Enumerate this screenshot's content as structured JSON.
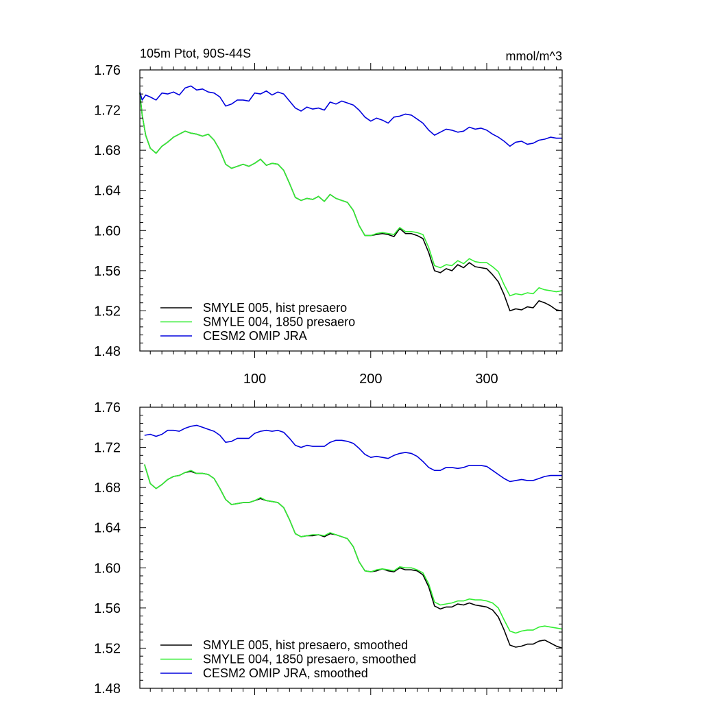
{
  "chart_data": [
    {
      "type": "line",
      "title": "105m Ptot, 90S-44S",
      "units": "mmol/m^3",
      "xlabel": "",
      "ylabel": "",
      "xlim": [
        1,
        365
      ],
      "ylim": [
        1.48,
        1.76
      ],
      "xticks": [
        100,
        200,
        300
      ],
      "xtick_labels": [
        "100",
        "200",
        "300"
      ],
      "yticks": [
        1.48,
        1.52,
        1.56,
        1.6,
        1.64,
        1.68,
        1.72,
        1.76
      ],
      "ytick_labels": [
        "1.48",
        "1.52",
        "1.56",
        "1.60",
        "1.64",
        "1.68",
        "1.72",
        "1.76"
      ],
      "grid": false,
      "legend_position": "bottom-left",
      "series": [
        {
          "name": "SMYLE 005, hist presaero",
          "color": "#000000",
          "x": [
            1,
            3,
            6,
            10,
            15,
            20,
            25,
            30,
            35,
            40,
            45,
            50,
            55,
            60,
            65,
            70,
            75,
            80,
            85,
            90,
            95,
            100,
            105,
            110,
            115,
            120,
            125,
            130,
            135,
            140,
            145,
            150,
            155,
            160,
            165,
            170,
            175,
            180,
            185,
            190,
            195,
            200,
            205,
            210,
            215,
            220,
            225,
            230,
            235,
            240,
            245,
            250,
            255,
            260,
            265,
            270,
            275,
            280,
            285,
            290,
            295,
            300,
            305,
            310,
            315,
            320,
            325,
            330,
            335,
            340,
            345,
            350,
            355,
            360,
            365
          ],
          "values": [
            1.737,
            1.715,
            1.695,
            1.682,
            1.677,
            1.684,
            1.688,
            1.693,
            1.696,
            1.699,
            1.697,
            1.696,
            1.694,
            1.696,
            1.69,
            1.68,
            1.666,
            1.662,
            1.664,
            1.666,
            1.664,
            1.667,
            1.671,
            1.665,
            1.667,
            1.666,
            1.66,
            1.647,
            1.633,
            1.63,
            1.632,
            1.631,
            1.634,
            1.629,
            1.636,
            1.632,
            1.63,
            1.628,
            1.62,
            1.605,
            1.595,
            1.595,
            1.596,
            1.597,
            1.596,
            1.594,
            1.602,
            1.597,
            1.597,
            1.595,
            1.592,
            1.578,
            1.56,
            1.558,
            1.562,
            1.56,
            1.566,
            1.563,
            1.568,
            1.564,
            1.563,
            1.562,
            1.556,
            1.549,
            1.536,
            1.52,
            1.522,
            1.521,
            1.524,
            1.523,
            1.53,
            1.528,
            1.525,
            1.521,
            1.52
          ]
        },
        {
          "name": "SMYLE 004, 1850 presaero",
          "color": "#33ee33",
          "x": [
            1,
            3,
            6,
            10,
            15,
            20,
            25,
            30,
            35,
            40,
            45,
            50,
            55,
            60,
            65,
            70,
            75,
            80,
            85,
            90,
            95,
            100,
            105,
            110,
            115,
            120,
            125,
            130,
            135,
            140,
            145,
            150,
            155,
            160,
            165,
            170,
            175,
            180,
            185,
            190,
            195,
            200,
            205,
            210,
            215,
            220,
            225,
            230,
            235,
            240,
            245,
            250,
            255,
            260,
            265,
            270,
            275,
            280,
            285,
            290,
            295,
            300,
            305,
            310,
            315,
            320,
            325,
            330,
            335,
            340,
            345,
            350,
            355,
            360,
            365
          ],
          "values": [
            1.737,
            1.715,
            1.695,
            1.682,
            1.677,
            1.684,
            1.688,
            1.693,
            1.696,
            1.699,
            1.697,
            1.696,
            1.694,
            1.696,
            1.69,
            1.68,
            1.666,
            1.662,
            1.664,
            1.666,
            1.664,
            1.667,
            1.671,
            1.665,
            1.667,
            1.666,
            1.66,
            1.647,
            1.633,
            1.63,
            1.632,
            1.631,
            1.634,
            1.629,
            1.636,
            1.632,
            1.63,
            1.628,
            1.62,
            1.605,
            1.595,
            1.595,
            1.597,
            1.598,
            1.597,
            1.596,
            1.603,
            1.599,
            1.599,
            1.598,
            1.596,
            1.583,
            1.565,
            1.563,
            1.566,
            1.565,
            1.57,
            1.567,
            1.572,
            1.569,
            1.568,
            1.568,
            1.564,
            1.559,
            1.546,
            1.535,
            1.537,
            1.536,
            1.538,
            1.537,
            1.543,
            1.541,
            1.54,
            1.539,
            1.54
          ]
        },
        {
          "name": "CESM2 OMIP JRA",
          "color": "#0000dd",
          "x": [
            1,
            3,
            6,
            10,
            15,
            20,
            25,
            30,
            35,
            40,
            45,
            50,
            55,
            60,
            65,
            70,
            75,
            80,
            85,
            90,
            95,
            100,
            105,
            110,
            115,
            120,
            125,
            130,
            135,
            140,
            145,
            150,
            155,
            160,
            165,
            170,
            175,
            180,
            185,
            190,
            195,
            200,
            205,
            210,
            215,
            220,
            225,
            230,
            235,
            240,
            245,
            250,
            255,
            260,
            265,
            270,
            275,
            280,
            285,
            290,
            295,
            300,
            305,
            310,
            315,
            320,
            325,
            330,
            335,
            340,
            345,
            350,
            355,
            360,
            365
          ],
          "values": [
            1.738,
            1.73,
            1.735,
            1.733,
            1.73,
            1.737,
            1.736,
            1.738,
            1.735,
            1.742,
            1.744,
            1.74,
            1.741,
            1.738,
            1.737,
            1.733,
            1.724,
            1.726,
            1.73,
            1.73,
            1.729,
            1.737,
            1.736,
            1.739,
            1.735,
            1.738,
            1.736,
            1.729,
            1.722,
            1.719,
            1.723,
            1.721,
            1.722,
            1.72,
            1.728,
            1.726,
            1.729,
            1.727,
            1.725,
            1.72,
            1.713,
            1.709,
            1.712,
            1.71,
            1.707,
            1.713,
            1.714,
            1.716,
            1.715,
            1.711,
            1.707,
            1.7,
            1.695,
            1.698,
            1.701,
            1.7,
            1.698,
            1.699,
            1.703,
            1.701,
            1.702,
            1.7,
            1.696,
            1.693,
            1.689,
            1.684,
            1.688,
            1.689,
            1.686,
            1.687,
            1.69,
            1.691,
            1.693,
            1.692,
            1.692
          ]
        }
      ]
    },
    {
      "type": "line",
      "title": "",
      "xlabel": "",
      "ylabel": "",
      "xlim": [
        1,
        365
      ],
      "ylim": [
        1.48,
        1.76
      ],
      "xticks": [
        100,
        200,
        300
      ],
      "yticks": [
        1.48,
        1.52,
        1.56,
        1.6,
        1.64,
        1.68,
        1.72,
        1.76
      ],
      "ytick_labels": [
        "1.48",
        "1.52",
        "1.56",
        "1.60",
        "1.64",
        "1.68",
        "1.72",
        "1.76"
      ],
      "grid": false,
      "legend_position": "bottom-left",
      "series": [
        {
          "name": "SMYLE 005, hist presaero, smoothed",
          "color": "#000000",
          "x": [
            5,
            10,
            15,
            20,
            25,
            30,
            35,
            40,
            45,
            50,
            55,
            60,
            65,
            70,
            75,
            80,
            85,
            90,
            95,
            100,
            105,
            110,
            115,
            120,
            125,
            130,
            135,
            140,
            145,
            150,
            155,
            160,
            165,
            170,
            175,
            180,
            185,
            190,
            195,
            200,
            205,
            210,
            215,
            220,
            225,
            230,
            235,
            240,
            245,
            250,
            255,
            260,
            265,
            270,
            275,
            280,
            285,
            290,
            295,
            300,
            305,
            310,
            315,
            320,
            325,
            330,
            335,
            340,
            345,
            350,
            355,
            360,
            365
          ],
          "values": [
            1.703,
            1.684,
            1.679,
            1.683,
            1.688,
            1.691,
            1.692,
            1.695,
            1.696,
            1.694,
            1.694,
            1.693,
            1.689,
            1.679,
            1.668,
            1.663,
            1.664,
            1.665,
            1.665,
            1.667,
            1.669,
            1.667,
            1.666,
            1.665,
            1.66,
            1.648,
            1.634,
            1.631,
            1.632,
            1.632,
            1.633,
            1.631,
            1.634,
            1.633,
            1.631,
            1.629,
            1.621,
            1.606,
            1.597,
            1.596,
            1.597,
            1.599,
            1.597,
            1.596,
            1.6,
            1.598,
            1.598,
            1.597,
            1.593,
            1.581,
            1.562,
            1.559,
            1.561,
            1.561,
            1.564,
            1.563,
            1.565,
            1.563,
            1.562,
            1.561,
            1.558,
            1.551,
            1.538,
            1.523,
            1.521,
            1.522,
            1.524,
            1.524,
            1.527,
            1.528,
            1.525,
            1.522,
            1.52
          ]
        },
        {
          "name": "SMYLE 004, 1850 presaero, smoothed",
          "color": "#33ee33",
          "x": [
            5,
            10,
            15,
            20,
            25,
            30,
            35,
            40,
            45,
            50,
            55,
            60,
            65,
            70,
            75,
            80,
            85,
            90,
            95,
            100,
            105,
            110,
            115,
            120,
            125,
            130,
            135,
            140,
            145,
            150,
            155,
            160,
            165,
            170,
            175,
            180,
            185,
            190,
            195,
            200,
            205,
            210,
            215,
            220,
            225,
            230,
            235,
            240,
            245,
            250,
            255,
            260,
            265,
            270,
            275,
            280,
            285,
            290,
            295,
            300,
            305,
            310,
            315,
            320,
            325,
            330,
            335,
            340,
            345,
            350,
            355,
            360,
            365
          ],
          "values": [
            1.703,
            1.684,
            1.679,
            1.683,
            1.688,
            1.691,
            1.692,
            1.695,
            1.697,
            1.694,
            1.694,
            1.693,
            1.689,
            1.679,
            1.668,
            1.663,
            1.664,
            1.665,
            1.665,
            1.667,
            1.67,
            1.667,
            1.666,
            1.665,
            1.66,
            1.648,
            1.634,
            1.631,
            1.632,
            1.633,
            1.633,
            1.632,
            1.635,
            1.633,
            1.631,
            1.629,
            1.621,
            1.606,
            1.597,
            1.596,
            1.598,
            1.599,
            1.598,
            1.597,
            1.601,
            1.6,
            1.6,
            1.598,
            1.595,
            1.584,
            1.566,
            1.563,
            1.564,
            1.565,
            1.567,
            1.567,
            1.569,
            1.568,
            1.568,
            1.567,
            1.565,
            1.56,
            1.548,
            1.537,
            1.535,
            1.537,
            1.538,
            1.538,
            1.541,
            1.542,
            1.541,
            1.54,
            1.539
          ]
        },
        {
          "name": "CESM2 OMIP JRA, smoothed",
          "color": "#0000dd",
          "x": [
            5,
            10,
            15,
            20,
            25,
            30,
            35,
            40,
            45,
            50,
            55,
            60,
            65,
            70,
            75,
            80,
            85,
            90,
            95,
            100,
            105,
            110,
            115,
            120,
            125,
            130,
            135,
            140,
            145,
            150,
            155,
            160,
            165,
            170,
            175,
            180,
            185,
            190,
            195,
            200,
            205,
            210,
            215,
            220,
            225,
            230,
            235,
            240,
            245,
            250,
            255,
            260,
            265,
            270,
            275,
            280,
            285,
            290,
            295,
            300,
            305,
            310,
            315,
            320,
            325,
            330,
            335,
            340,
            345,
            350,
            355,
            360,
            365
          ],
          "values": [
            1.732,
            1.733,
            1.731,
            1.733,
            1.737,
            1.737,
            1.736,
            1.739,
            1.741,
            1.742,
            1.74,
            1.738,
            1.736,
            1.732,
            1.725,
            1.726,
            1.729,
            1.729,
            1.729,
            1.734,
            1.736,
            1.737,
            1.736,
            1.737,
            1.735,
            1.729,
            1.722,
            1.72,
            1.722,
            1.721,
            1.721,
            1.721,
            1.725,
            1.727,
            1.727,
            1.726,
            1.724,
            1.719,
            1.713,
            1.71,
            1.711,
            1.71,
            1.709,
            1.712,
            1.714,
            1.715,
            1.714,
            1.711,
            1.706,
            1.7,
            1.697,
            1.697,
            1.7,
            1.7,
            1.699,
            1.7,
            1.702,
            1.702,
            1.702,
            1.701,
            1.697,
            1.693,
            1.689,
            1.686,
            1.687,
            1.688,
            1.687,
            1.687,
            1.689,
            1.691,
            1.692,
            1.692,
            1.692
          ]
        }
      ]
    }
  ]
}
